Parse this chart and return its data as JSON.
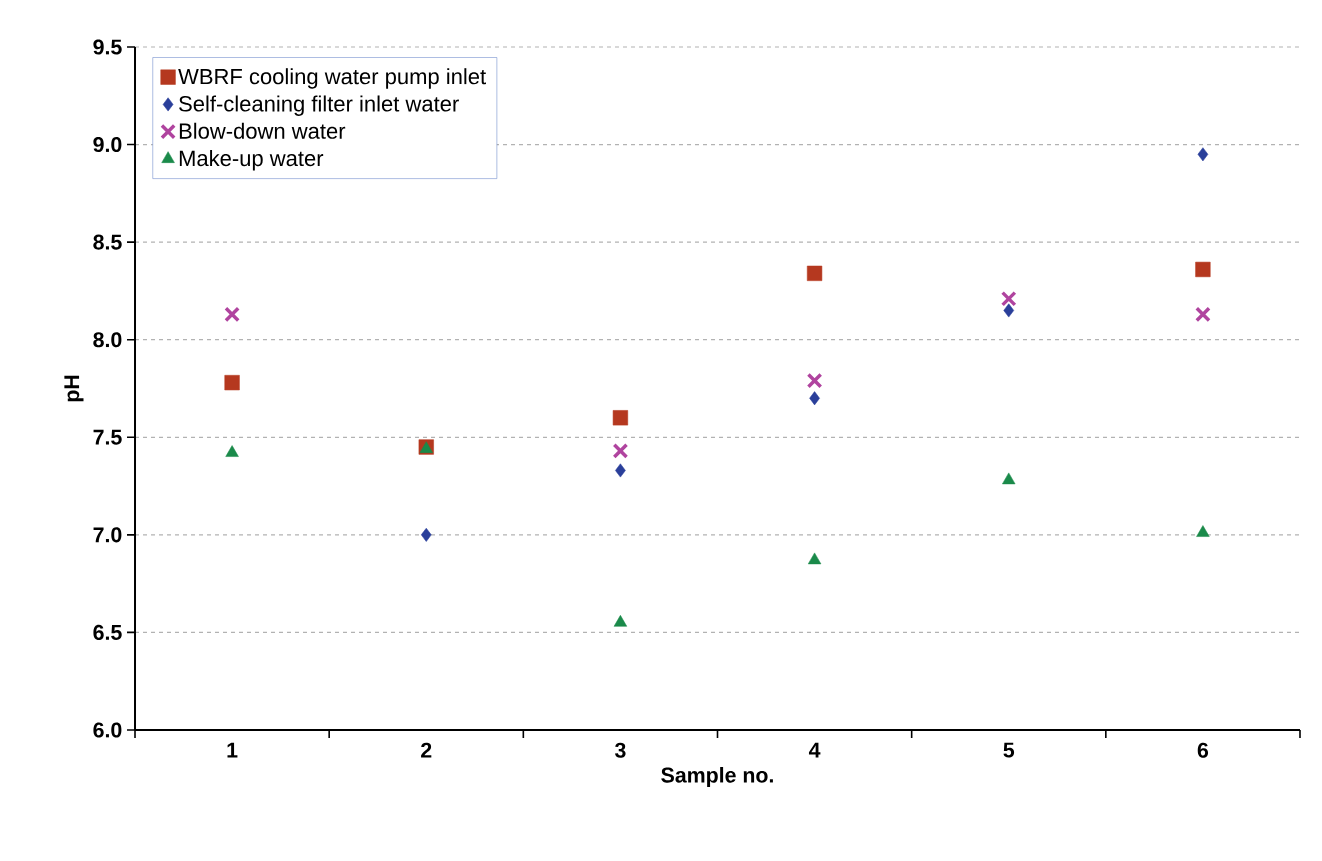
{
  "chart_data": {
    "type": "scatter",
    "xlabel": "Sample no.",
    "ylabel": "pH",
    "categories": [
      "1",
      "2",
      "3",
      "4",
      "5",
      "6"
    ],
    "ylim": [
      6.0,
      9.5
    ],
    "yticks": [
      {
        "value": 6.0,
        "label": "6.0"
      },
      {
        "value": 6.5,
        "label": "6.5"
      },
      {
        "value": 7.0,
        "label": "7.0"
      },
      {
        "value": 7.5,
        "label": "7.5"
      },
      {
        "value": 8.0,
        "label": "8.0"
      },
      {
        "value": 8.5,
        "label": "8.5"
      },
      {
        "value": 9.0,
        "label": "9.0"
      },
      {
        "value": 9.5,
        "label": "9.5"
      }
    ],
    "grid": "y",
    "legend": "top left",
    "series": [
      {
        "name": "WBRF cooling water pump inlet",
        "color": "#b5381f",
        "marker": "square",
        "values": [
          7.78,
          7.45,
          7.6,
          8.34,
          null,
          8.36
        ]
      },
      {
        "name": "Self-cleaning filter inlet water",
        "color": "#2a3f9a",
        "marker": "diamond",
        "values": [
          null,
          7.0,
          7.33,
          7.7,
          8.15,
          8.95
        ]
      },
      {
        "name": "Blow-down water",
        "color": "#b0449f",
        "marker": "cross",
        "values": [
          8.13,
          null,
          7.43,
          7.79,
          8.21,
          8.13
        ]
      },
      {
        "name": "Make-up water",
        "color": "#1a8a4a",
        "marker": "triangle",
        "values": [
          7.42,
          7.44,
          6.55,
          6.87,
          7.28,
          7.01
        ]
      }
    ]
  }
}
